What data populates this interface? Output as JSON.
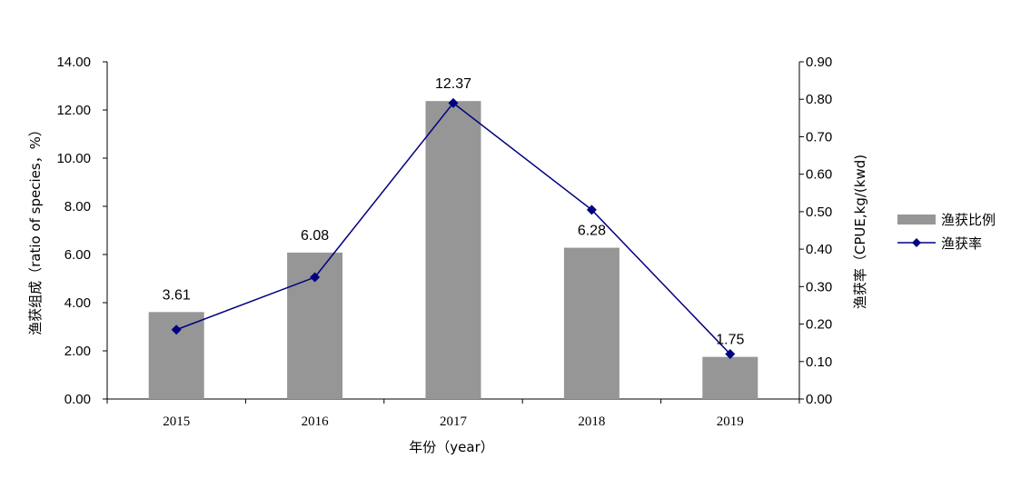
{
  "chart_data": {
    "type": "bar",
    "categories": [
      "2015",
      "2016",
      "2017",
      "2018",
      "2019"
    ],
    "series": [
      {
        "name": "渔获比例",
        "type": "bar",
        "axis": "left",
        "color": "#969696",
        "values": [
          3.61,
          6.08,
          12.37,
          6.28,
          1.75
        ],
        "labels": [
          "3.61",
          "6.08",
          "12.37",
          "6.28",
          "1.75"
        ]
      },
      {
        "name": "渔获率",
        "type": "line",
        "axis": "right",
        "color": "#000080",
        "marker": "diamond",
        "values": [
          0.185,
          0.325,
          0.79,
          0.505,
          0.12
        ]
      }
    ],
    "xlabel": "年份（year）",
    "ylabel": "渔获组成（ratio of species，%）",
    "y2label": "渔获率（CPUE,kg/(kwd)",
    "ylim": [
      0,
      14
    ],
    "y2lim": [
      0,
      0.9
    ],
    "yticks": [
      "0.00",
      "2.00",
      "4.00",
      "6.00",
      "8.00",
      "10.00",
      "12.00",
      "14.00"
    ],
    "y2ticks": [
      "0.00",
      "0.10",
      "0.20",
      "0.30",
      "0.40",
      "0.50",
      "0.60",
      "0.70",
      "0.80",
      "0.90"
    ],
    "grid": false,
    "legend": "right"
  }
}
